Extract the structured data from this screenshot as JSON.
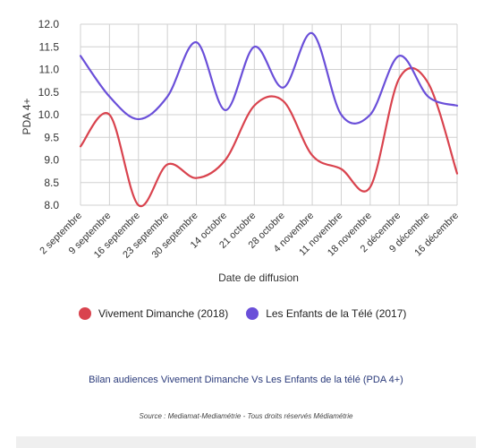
{
  "chart_data": {
    "type": "line",
    "x": [
      "2 septembre",
      "9 septembre",
      "16 septembre",
      "23 septembre",
      "30 septembre",
      "14 octobre",
      "21 octobre",
      "28 octobre",
      "4 novembre",
      "11 novembre",
      "18 novembre",
      "2 décembre",
      "9 décembre",
      "16 décembre"
    ],
    "series": [
      {
        "name": "Vivement Dimanche (2018)",
        "color": "#d9434e",
        "values": [
          9.3,
          10.0,
          8.0,
          8.9,
          8.6,
          9.0,
          10.2,
          10.3,
          9.1,
          8.8,
          8.4,
          10.8,
          10.7,
          8.7
        ]
      },
      {
        "name": "Les Enfants de la Télé (2017)",
        "color": "#6a4fd9",
        "values": [
          11.3,
          10.4,
          9.9,
          10.4,
          11.6,
          10.1,
          11.5,
          10.6,
          11.8,
          10.0,
          10.0,
          11.3,
          10.4,
          10.2
        ]
      }
    ],
    "yticks": [
      "8.0",
      "8.5",
      "9.0",
      "9.5",
      "10.0",
      "10.5",
      "11.0",
      "11.5",
      "12.0"
    ],
    "ylim": [
      8,
      12
    ],
    "ylabel": "PDA 4+",
    "xlabel": "Date de diffusion",
    "grid": true,
    "legend_position": "bottom"
  },
  "caption": "Bilan audiences Vivement Dimanche Vs Les Enfants de la télé (PDA 4+)",
  "source": "Source : Mediamat-Mediamétrie - Tous droits réservés Médiamétrie"
}
